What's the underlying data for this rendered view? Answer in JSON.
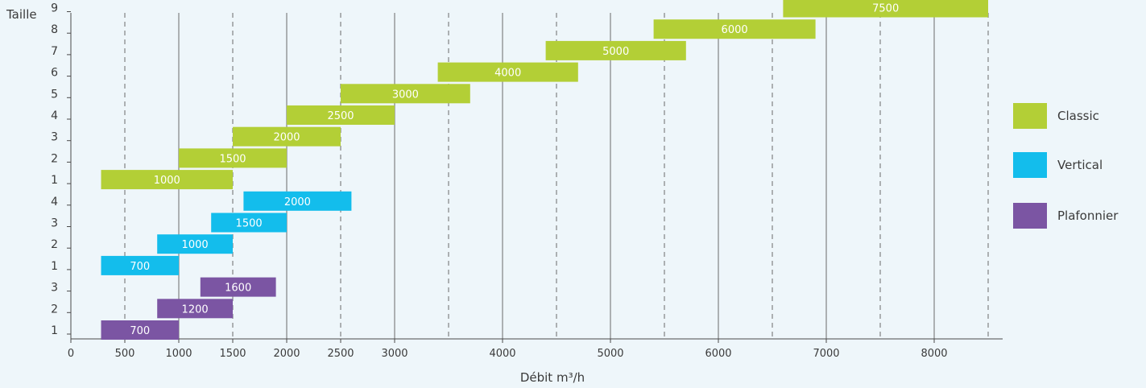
{
  "colors": {
    "classic": "#b3cf36",
    "vertical": "#13bdec",
    "plafonnier": "#7b55a3",
    "axis": "#4a4a4a",
    "text": "#3a3a3a"
  },
  "chart_data": {
    "type": "bar",
    "orientation": "horizontal-range",
    "ylabel": "Taille",
    "xlabel": "Débit m³/h",
    "grid": true,
    "legend_position": "right",
    "x_ticks": [
      "0",
      "500",
      "1000",
      "1500",
      "2000",
      "2500",
      "3000",
      "4000",
      "5000",
      "6000",
      "7000",
      "8000"
    ],
    "x_tick_values": [
      0,
      500,
      1000,
      1500,
      2000,
      2500,
      3000,
      3500,
      4000,
      4500,
      5000,
      5500,
      6000,
      6500,
      7000,
      7500,
      8000,
      8500
    ],
    "series": [
      {
        "name": "Plafonnier",
        "color_key": "plafonnier",
        "rows": [
          {
            "size": "1",
            "start": 280,
            "end": 1000,
            "label": "700"
          },
          {
            "size": "2",
            "start": 800,
            "end": 1500,
            "label": "1200"
          },
          {
            "size": "3",
            "start": 1200,
            "end": 1900,
            "label": "1600"
          }
        ]
      },
      {
        "name": "Vertical",
        "color_key": "vertical",
        "rows": [
          {
            "size": "1",
            "start": 280,
            "end": 1000,
            "label": "700"
          },
          {
            "size": "2",
            "start": 800,
            "end": 1500,
            "label": "1000"
          },
          {
            "size": "3",
            "start": 1300,
            "end": 2000,
            "label": "1500"
          },
          {
            "size": "4",
            "start": 1600,
            "end": 2600,
            "label": "2000"
          }
        ]
      },
      {
        "name": "Classic",
        "color_key": "classic",
        "rows": [
          {
            "size": "1",
            "start": 280,
            "end": 1500,
            "label": "1000"
          },
          {
            "size": "2",
            "start": 1000,
            "end": 2000,
            "label": "1500"
          },
          {
            "size": "3",
            "start": 1500,
            "end": 2500,
            "label": "2000"
          },
          {
            "size": "4",
            "start": 2000,
            "end": 3000,
            "label": "2500"
          },
          {
            "size": "5",
            "start": 2500,
            "end": 3700,
            "label": "3000"
          },
          {
            "size": "6",
            "start": 3400,
            "end": 4700,
            "label": "4000"
          },
          {
            "size": "7",
            "start": 4400,
            "end": 5700,
            "label": "5000"
          },
          {
            "size": "8",
            "start": 5400,
            "end": 6900,
            "label": "6000"
          },
          {
            "size": "9",
            "start": 6600,
            "end": 8500,
            "label": "7500"
          }
        ]
      }
    ],
    "legend": [
      {
        "label": "Classic",
        "color_key": "classic"
      },
      {
        "label": "Vertical",
        "color_key": "vertical"
      },
      {
        "label": "Plafonnier",
        "color_key": "plafonnier"
      }
    ]
  }
}
